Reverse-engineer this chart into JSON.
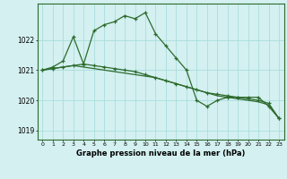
{
  "x": [
    0,
    1,
    2,
    3,
    4,
    5,
    6,
    7,
    8,
    9,
    10,
    11,
    12,
    13,
    14,
    15,
    16,
    17,
    18,
    19,
    20,
    21,
    22,
    23
  ],
  "series1": [
    1021.0,
    1021.1,
    1021.3,
    1022.1,
    1021.2,
    1022.3,
    1022.5,
    1022.6,
    1022.8,
    1022.7,
    1022.9,
    1022.2,
    1021.8,
    1021.4,
    1021.0,
    1020.0,
    1019.8,
    1020.0,
    1020.1,
    1020.1,
    1020.1,
    1020.1,
    1019.8,
    1019.4
  ],
  "series2": [
    1021.0,
    1021.05,
    1021.1,
    1021.15,
    1021.2,
    1021.15,
    1021.1,
    1021.05,
    1021.0,
    1020.95,
    1020.85,
    1020.75,
    1020.65,
    1020.55,
    1020.45,
    1020.35,
    1020.25,
    1020.2,
    1020.15,
    1020.1,
    1020.05,
    1020.0,
    1019.9,
    1019.4
  ],
  "series3": [
    1021.0,
    1021.05,
    1021.1,
    1021.15,
    1021.1,
    1021.05,
    1021.0,
    1020.95,
    1020.9,
    1020.85,
    1020.8,
    1020.75,
    1020.65,
    1020.55,
    1020.45,
    1020.35,
    1020.25,
    1020.15,
    1020.1,
    1020.05,
    1020.0,
    1019.95,
    1019.85,
    1019.4
  ],
  "line_color": "#2d6b2d",
  "bg_color": "#d4f0f0",
  "grid_color": "#aadddd",
  "xlabel": "Graphe pression niveau de la mer (hPa)",
  "ylim": [
    1018.7,
    1023.2
  ],
  "yticks": [
    1019,
    1020,
    1021,
    1022
  ],
  "xticks": [
    0,
    1,
    2,
    3,
    4,
    5,
    6,
    7,
    8,
    9,
    10,
    11,
    12,
    13,
    14,
    15,
    16,
    17,
    18,
    19,
    20,
    21,
    22,
    23
  ]
}
